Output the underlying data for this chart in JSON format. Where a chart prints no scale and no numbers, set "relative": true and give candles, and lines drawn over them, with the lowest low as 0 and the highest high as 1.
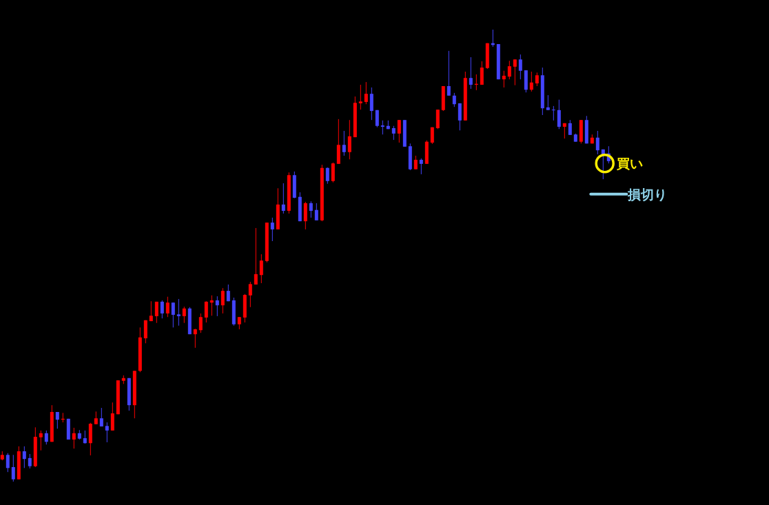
{
  "chart_data": {
    "type": "candlestick",
    "relative": true,
    "categories": [
      null,
      null,
      null,
      null,
      null,
      null,
      null,
      null,
      null,
      null,
      null,
      null,
      null,
      null,
      null,
      null,
      null,
      null,
      null,
      null,
      null,
      null,
      null,
      null,
      null,
      null,
      null,
      null,
      null,
      null,
      null,
      null,
      null,
      null,
      null,
      null,
      null,
      null,
      null,
      null,
      null,
      null,
      null,
      null,
      null,
      null,
      null,
      null,
      null,
      null,
      null,
      null,
      null,
      null,
      null,
      null,
      null,
      null,
      null,
      null,
      null,
      null,
      null,
      null,
      null,
      null,
      null,
      null,
      null,
      null,
      null,
      null,
      null,
      null,
      null,
      null,
      null,
      null,
      null,
      null,
      null,
      null,
      null,
      null,
      null,
      null,
      null,
      null,
      null,
      null,
      null,
      null,
      null,
      null,
      null,
      null,
      null,
      null,
      null,
      null,
      null,
      null,
      null,
      null,
      null,
      null,
      null,
      null,
      null,
      null,
      null
    ],
    "ohlc": [
      [
        0.049,
        0.067,
        0.047,
        0.059
      ],
      [
        0.059,
        0.063,
        0.021,
        0.03
      ],
      [
        0.032,
        0.059,
        0,
        0.005
      ],
      [
        0.005,
        0.078,
        0.005,
        0.067
      ],
      [
        0.067,
        0.078,
        0.03,
        0.05
      ],
      [
        0.052,
        0.061,
        0.029,
        0.034
      ],
      [
        0.034,
        0.12,
        0.032,
        0.099
      ],
      [
        0.098,
        0.113,
        0.069,
        0.107
      ],
      [
        0.107,
        0.113,
        0.082,
        0.088
      ],
      [
        0.088,
        0.169,
        0.088,
        0.154
      ],
      [
        0.154,
        0.154,
        0.117,
        0.137
      ],
      [
        0.137,
        0.152,
        0.131,
        0.139
      ],
      [
        0.139,
        0.139,
        0.093,
        0.093
      ],
      [
        0.093,
        0.119,
        0.073,
        0.107
      ],
      [
        0.107,
        0.114,
        0.093,
        0.095
      ],
      [
        0.096,
        0.113,
        0.084,
        0.085
      ],
      [
        0.085,
        0.13,
        0.058,
        0.128
      ],
      [
        0.127,
        0.155,
        0.127,
        0.14
      ],
      [
        0.14,
        0.163,
        0.122,
        0.122
      ],
      [
        0.123,
        0.131,
        0.087,
        0.113
      ],
      [
        0.113,
        0.175,
        0.113,
        0.151
      ],
      [
        0.149,
        0.224,
        0.149,
        0.224
      ],
      [
        0.223,
        0.235,
        0.216,
        0.229
      ],
      [
        0.229,
        0.229,
        0.157,
        0.169
      ],
      [
        0.169,
        0.245,
        0.14,
        0.245
      ],
      [
        0.245,
        0.341,
        0.242,
        0.319
      ],
      [
        0.317,
        0.357,
        0.306,
        0.357
      ],
      [
        0.355,
        0.399,
        0.355,
        0.367
      ],
      [
        0.366,
        0.398,
        0.351,
        0.398
      ],
      [
        0.398,
        0.401,
        0.361,
        0.372
      ],
      [
        0.372,
        0.409,
        0.364,
        0.396
      ],
      [
        0.396,
        0.396,
        0.341,
        0.369
      ],
      [
        0.37,
        0.404,
        0.345,
        0.366
      ],
      [
        0.366,
        0.387,
        0.351,
        0.383
      ],
      [
        0.383,
        0.386,
        0.326,
        0.326
      ],
      [
        0.326,
        0.338,
        0.296,
        0.337
      ],
      [
        0.335,
        0.372,
        0.329,
        0.364
      ],
      [
        0.363,
        0.399,
        0.352,
        0.398
      ],
      [
        0.396,
        0.412,
        0.367,
        0.401
      ],
      [
        0.401,
        0.41,
        0.366,
        0.39
      ],
      [
        0.39,
        0.428,
        0.372,
        0.422
      ],
      [
        0.422,
        0.436,
        0.399,
        0.399
      ],
      [
        0.401,
        0.407,
        0.345,
        0.348
      ],
      [
        0.348,
        0.364,
        0.337,
        0.364
      ],
      [
        0.363,
        0.415,
        0.352,
        0.413
      ],
      [
        0.412,
        0.442,
        0.386,
        0.437
      ],
      [
        0.436,
        0.561,
        0.436,
        0.459
      ],
      [
        0.457,
        0.503,
        0.439,
        0.489
      ],
      [
        0.488,
        0.573,
        0.485,
        0.573
      ],
      [
        0.573,
        0.584,
        0.532,
        0.558
      ],
      [
        0.558,
        0.649,
        0.558,
        0.613
      ],
      [
        0.613,
        0.66,
        0.593,
        0.599
      ],
      [
        0.599,
        0.684,
        0.593,
        0.678
      ],
      [
        0.678,
        0.686,
        0.627,
        0.628
      ],
      [
        0.63,
        0.64,
        0.576,
        0.576
      ],
      [
        0.576,
        0.619,
        0.558,
        0.616
      ],
      [
        0.616,
        0.62,
        0.584,
        0.599
      ],
      [
        0.601,
        0.616,
        0.578,
        0.578
      ],
      [
        0.578,
        0.701,
        0.576,
        0.694
      ],
      [
        0.694,
        0.695,
        0.659,
        0.665
      ],
      [
        0.665,
        0.706,
        0.662,
        0.704
      ],
      [
        0.703,
        0.802,
        0.703,
        0.745
      ],
      [
        0.745,
        0.776,
        0.721,
        0.729
      ],
      [
        0.729,
        0.8,
        0.713,
        0.764
      ],
      [
        0.762,
        0.852,
        0.762,
        0.838
      ],
      [
        0.837,
        0.878,
        0.823,
        0.841
      ],
      [
        0.84,
        0.884,
        0.835,
        0.858
      ],
      [
        0.858,
        0.872,
        0.8,
        0.82
      ],
      [
        0.822,
        0.822,
        0.784,
        0.787
      ],
      [
        0.788,
        0.799,
        0.768,
        0.785
      ],
      [
        0.787,
        0.799,
        0.78,
        0.78
      ],
      [
        0.782,
        0.787,
        0.756,
        0.77
      ],
      [
        0.77,
        0.8,
        0.75,
        0.8
      ],
      [
        0.8,
        0.8,
        0.741,
        0.741
      ],
      [
        0.742,
        0.748,
        0.689,
        0.691
      ],
      [
        0.691,
        0.721,
        0.691,
        0.712
      ],
      [
        0.712,
        0.715,
        0.68,
        0.703
      ],
      [
        0.703,
        0.755,
        0.703,
        0.752
      ],
      [
        0.75,
        0.784,
        0.747,
        0.784
      ],
      [
        0.782,
        0.823,
        0.78,
        0.823
      ],
      [
        0.822,
        0.875,
        0.82,
        0.875
      ],
      [
        0.875,
        0.953,
        0.854,
        0.854
      ],
      [
        0.854,
        0.86,
        0.829,
        0.835
      ],
      [
        0.837,
        0.837,
        0.777,
        0.799
      ],
      [
        0.799,
        0.907,
        0.799,
        0.893
      ],
      [
        0.893,
        0.939,
        0.869,
        0.878
      ],
      [
        0.878,
        0.901,
        0.866,
        0.88
      ],
      [
        0.878,
        0.93,
        0.878,
        0.916
      ],
      [
        0.915,
        0.97,
        0.913,
        0.97
      ],
      [
        0.97,
        1,
        0.962,
        0.966
      ],
      [
        0.968,
        0.968,
        0.89,
        0.89
      ],
      [
        0.89,
        0.909,
        0.872,
        0.898
      ],
      [
        0.896,
        0.931,
        0.89,
        0.919
      ],
      [
        0.918,
        0.934,
        0.877,
        0.934
      ],
      [
        0.934,
        0.945,
        0.89,
        0.909
      ],
      [
        0.91,
        0.91,
        0.861,
        0.867
      ],
      [
        0.867,
        0.907,
        0.863,
        0.883
      ],
      [
        0.881,
        0.905,
        0.875,
        0.899
      ],
      [
        0.899,
        0.916,
        0.811,
        0.826
      ],
      [
        0.828,
        0.855,
        0.822,
        0.822
      ],
      [
        0.823,
        0.831,
        0.799,
        0.822
      ],
      [
        0.822,
        0.845,
        0.78,
        0.785
      ],
      [
        0.785,
        0.793,
        0.759,
        0.793
      ],
      [
        0.793,
        0.8,
        0.767,
        0.767
      ],
      [
        0.768,
        0.77,
        0.752,
        0.752
      ],
      [
        0.752,
        0.8,
        0.748,
        0.8
      ],
      [
        0.8,
        0.809,
        0.748,
        0.748
      ],
      [
        0.748,
        0.768,
        0.748,
        0.761
      ],
      [
        0.761,
        0.776,
        0.724,
        0.733
      ],
      [
        0.735,
        0.735,
        0.669,
        0.724
      ],
      [
        0.726,
        0.742,
        0.704,
        0.709
      ]
    ],
    "colors": [
      "#ff0000",
      "#4444ff",
      "#4444ff",
      "#ff0000",
      "#4444ff",
      "#4444ff",
      "#ff0000",
      "#ff0000",
      "#4444ff",
      "#ff0000",
      "#4444ff",
      "#ff0000",
      "#4444ff",
      "#ff0000",
      "#4444ff",
      "#4444ff",
      "#ff0000",
      "#ff0000",
      "#4444ff",
      "#4444ff",
      "#ff0000",
      "#ff0000",
      "#ff0000",
      "#4444ff",
      "#ff0000",
      "#ff0000",
      "#ff0000",
      "#ff0000",
      "#ff0000",
      "#4444ff",
      "#ff0000",
      "#4444ff",
      "#4444ff",
      "#ff0000",
      "#4444ff",
      "#ff0000",
      "#ff0000",
      "#ff0000",
      "#ff0000",
      "#4444ff",
      "#ff0000",
      "#4444ff",
      "#4444ff",
      "#ff0000",
      "#ff0000",
      "#ff0000",
      "#ff0000",
      "#ff0000",
      "#ff0000",
      "#4444ff",
      "#ff0000",
      "#4444ff",
      "#ff0000",
      "#4444ff",
      "#4444ff",
      "#ff0000",
      "#4444ff",
      "#4444ff",
      "#ff0000",
      "#4444ff",
      "#ff0000",
      "#ff0000",
      "#4444ff",
      "#ff0000",
      "#ff0000",
      "#ff0000",
      "#ff0000",
      "#4444ff",
      "#4444ff",
      "#4444ff",
      "#4444ff",
      "#4444ff",
      "#ff0000",
      "#4444ff",
      "#4444ff",
      "#ff0000",
      "#4444ff",
      "#ff0000",
      "#ff0000",
      "#ff0000",
      "#ff0000",
      "#4444ff",
      "#4444ff",
      "#4444ff",
      "#ff0000",
      "#4444ff",
      "#ff0000",
      "#ff0000",
      "#ff0000",
      "#4444ff",
      "#4444ff",
      "#ff0000",
      "#ff0000",
      "#ff0000",
      "#4444ff",
      "#4444ff",
      "#ff0000",
      "#ff0000",
      "#4444ff",
      "#4444ff",
      "#4444ff",
      "#4444ff",
      "#ff0000",
      "#4444ff",
      "#4444ff",
      "#ff0000",
      "#4444ff",
      "#ff0000",
      "#4444ff",
      "#4444ff",
      "#4444ff"
    ],
    "annotations": [
      "買い"
    ],
    "ref_lines": [
      {
        "axis": "y",
        "value": 0.636,
        "label": "損切り",
        "color": "#8fd3ea"
      }
    ]
  }
}
